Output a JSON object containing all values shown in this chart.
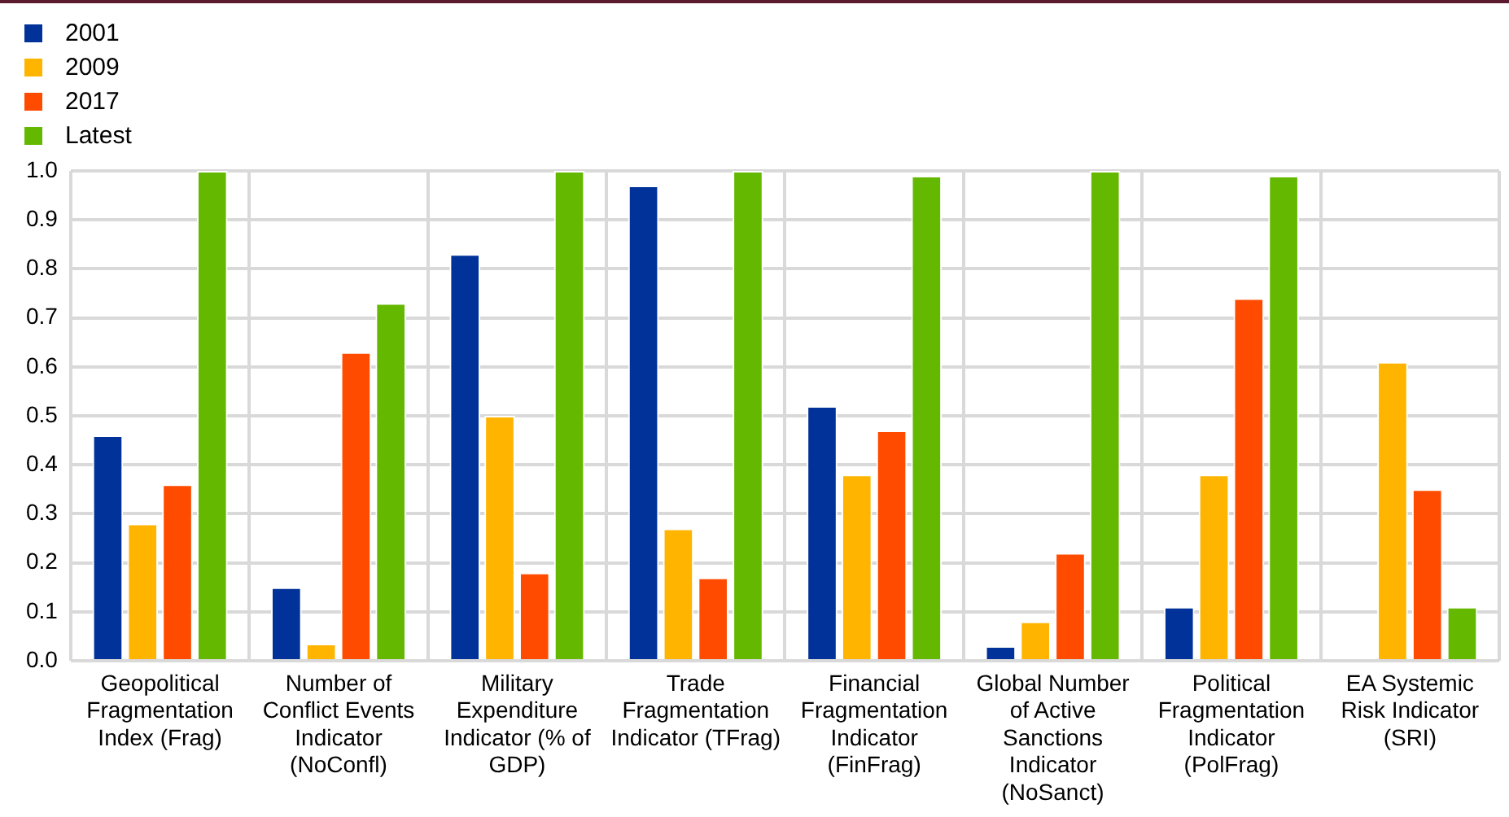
{
  "chart_data": {
    "type": "bar",
    "categories": [
      "Geopolitical Fragmentation Index (Frag)",
      "Number of Conflict Events Indicator (NoConfl)",
      "Military Expenditure Indicator (% of GDP)",
      "Trade Fragmentation Indicator (TFrag)",
      "Financial Fragmentation Indicator (FinFrag)",
      "Global Number of Active Sanctions Indicator (NoSanct)",
      "Political Fragmentation Indicator (PolFrag)",
      "EA Systemic Risk Indicator (SRI)"
    ],
    "series": [
      {
        "name": "2001",
        "color": "#003299",
        "values": [
          0.46,
          0.15,
          0.83,
          0.97,
          0.52,
          0.03,
          0.11,
          null
        ]
      },
      {
        "name": "2009",
        "color": "#ffb400",
        "values": [
          0.28,
          0.035,
          0.5,
          0.27,
          0.38,
          0.08,
          0.38,
          0.61
        ]
      },
      {
        "name": "2017",
        "color": "#ff4b00",
        "values": [
          0.36,
          0.63,
          0.18,
          0.17,
          0.47,
          0.22,
          0.74,
          0.35
        ]
      },
      {
        "name": "Latest",
        "color": "#65b800",
        "values": [
          1.0,
          0.73,
          1.0,
          1.0,
          0.99,
          1.0,
          0.99,
          0.11
        ]
      }
    ],
    "ylim": [
      0,
      1
    ],
    "yticks": [
      {
        "value": 0,
        "label": "0.0"
      },
      {
        "value": 0.1,
        "label": "0.1"
      },
      {
        "value": 0.2,
        "label": "0.2"
      },
      {
        "value": 0.3,
        "label": "0.3"
      },
      {
        "value": 0.4,
        "label": "0.4"
      },
      {
        "value": 0.5,
        "label": "0.5"
      },
      {
        "value": 0.6,
        "label": "0.6"
      },
      {
        "value": 0.7,
        "label": "0.7"
      },
      {
        "value": 0.8,
        "label": "0.8"
      },
      {
        "value": 0.9,
        "label": "0.9"
      },
      {
        "value": 1,
        "label": "1.0"
      }
    ],
    "grid": true,
    "legend": "top left"
  }
}
